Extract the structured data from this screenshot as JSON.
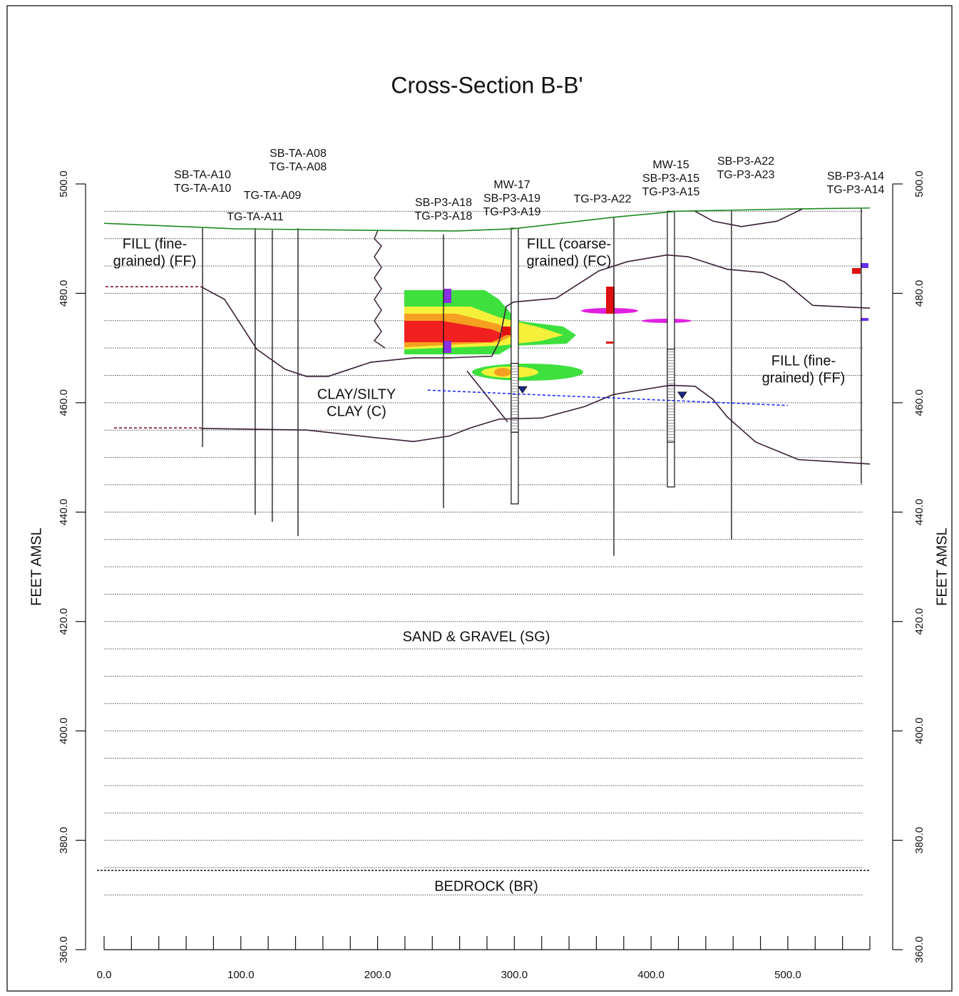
{
  "chart_data": {
    "type": "line",
    "title": "Cross-Section B-B'",
    "y_label": "FEET AMSL",
    "xlim": [
      0,
      560
    ],
    "ylim": [
      360,
      500
    ],
    "xticks": [
      {
        "value": 0,
        "label": "0.0"
      },
      {
        "value": 100,
        "label": "100.0"
      },
      {
        "value": 200,
        "label": "200.0"
      },
      {
        "value": 300,
        "label": "300.0"
      },
      {
        "value": 400,
        "label": "400.0"
      },
      {
        "value": 500,
        "label": "500.0"
      }
    ],
    "xminorticks": [
      20,
      40,
      60,
      80,
      120,
      140,
      160,
      180,
      220,
      240,
      260,
      280,
      320,
      340,
      360,
      380,
      420,
      440,
      460,
      480,
      520,
      540,
      560
    ],
    "yticks": [
      {
        "value": 500,
        "label": "500.0"
      },
      {
        "value": 480,
        "label": "480.0"
      },
      {
        "value": 460,
        "label": "460.0"
      },
      {
        "value": 440,
        "label": "440.0"
      },
      {
        "value": 420,
        "label": "420.0"
      },
      {
        "value": 400,
        "label": "400.0"
      },
      {
        "value": 380,
        "label": "380.0"
      },
      {
        "value": 360,
        "label": "360.0"
      }
    ],
    "grid_levels": [
      495,
      490,
      485,
      480,
      475,
      470,
      465,
      460,
      455,
      450,
      445,
      440,
      435,
      430,
      425,
      420,
      415,
      410,
      405,
      400,
      395,
      390,
      385,
      380,
      375,
      370
    ],
    "bedrock_contact": 374.5,
    "series": [
      {
        "color": "#1f8a1f",
        "dash": false,
        "x": [
          0,
          96,
          200,
          258,
          299,
          372,
          419,
          497,
          560
        ],
        "values": [
          492.8,
          491.8,
          491.5,
          491.4,
          491.8,
          493.9,
          495.0,
          495.4,
          495.6
        ]
      },
      {
        "color": "#7a1a2a",
        "dash": true,
        "x": [
          1.0,
          70.9
        ],
        "values": [
          481.2,
          481.2
        ]
      },
      {
        "color": "#3a1f35",
        "dash": false,
        "x": [
          70.9,
          88.1,
          111.6,
          132.4,
          148.1,
          163.7,
          195.0,
          226.3,
          252.3,
          283.6,
          288.8,
          294.1,
          299.3,
          330.6,
          361.8,
          382.7,
          411.4,
          427.0,
          455.7,
          481.8,
          497.4,
          518.2,
          560.0
        ],
        "values": [
          481.2,
          478.9,
          469.8,
          466.1,
          464.8,
          464.8,
          467.4,
          468.2,
          468.2,
          468.5,
          471.1,
          477.6,
          478.4,
          479.1,
          484.1,
          485.8,
          487.0,
          486.7,
          484.4,
          483.8,
          482.1,
          477.8,
          477.3
        ]
      },
      {
        "color": "#7a1a2a",
        "dash": true,
        "x": [
          7.3,
          70.9
        ],
        "values": [
          455.4,
          455.4
        ]
      },
      {
        "color": "#3a1f35",
        "dash": false,
        "x": [
          70.9,
          148.1,
          195.0,
          226.3,
          252.3,
          268.0,
          288.8,
          320.1,
          351.4,
          372.3,
          414.0,
          432.2,
          445.3,
          455.7,
          476.5,
          507.8,
          560.0
        ],
        "values": [
          455.3,
          455.0,
          453.7,
          452.9,
          453.9,
          455.4,
          457.0,
          457.2,
          459.3,
          461.5,
          463.2,
          463.0,
          460.6,
          457.4,
          452.8,
          449.6,
          448.8
        ]
      },
      {
        "color": "#3a1f35",
        "dash": false,
        "x": [
          265.4,
          295.1
        ],
        "values": [
          465.8,
          456.5
        ]
      },
      {
        "color": "#3a1f35",
        "dash": false,
        "x": [
          432.2,
          445.3,
          466.1,
          492.2,
          510.4
        ],
        "values": [
          495.0,
          493.2,
          492.2,
          493.2,
          495.4
        ]
      },
      {
        "color": "#1a2cff",
        "dash": true,
        "x": [
          236.7,
          500.0
        ],
        "values": [
          462.3,
          459.5
        ]
      }
    ],
    "water_levels": {
      "x": [
        306.0,
        422.8
      ],
      "values": [
        462.3,
        461.3
      ]
    },
    "borings": [
      {
        "labels": [
          "SB-TA-A10",
          "TG-TA-A10"
        ],
        "x": 72.0,
        "top": 491.9,
        "bottom": 451.9
      },
      {
        "labels": [
          "TG-TA-A11"
        ],
        "x": 110.5,
        "top": 491.9,
        "bottom": 439.5
      },
      {
        "labels": [
          "TG-TA-A09"
        ],
        "x": 123.0,
        "top": 491.6,
        "bottom": 438.2
      },
      {
        "labels": [
          "SB-TA-A08",
          "TG-TA-A08"
        ],
        "x": 141.8,
        "top": 491.9,
        "bottom": 435.6
      },
      {
        "labels": [
          "SB-P3-A18",
          "TG-P3-A18"
        ],
        "x": 248.2,
        "top": 490.8,
        "bottom": 440.7
      },
      {
        "labels": [
          "MW-17",
          "SB-P3-A19",
          "TG-P3-A19"
        ],
        "x": 300.3,
        "top": 491.9,
        "bottom": 441.5,
        "screen": [
          467.2,
          454.6
        ]
      },
      {
        "labels": [
          "TG-P3-A22"
        ],
        "x": 372.8,
        "top": 493.9,
        "bottom": 432.0
      },
      {
        "labels": [
          "MW-15",
          "SB-P3-A15",
          "TG-P3-A15"
        ],
        "x": 414.5,
        "top": 495.0,
        "bottom": 444.6,
        "screen": [
          469.8,
          452.8
        ]
      },
      {
        "labels": [
          "SB-P3-A22",
          "TG-P3-A23"
        ],
        "x": 458.8,
        "top": 495.2,
        "bottom": 435.0
      },
      {
        "labels": [
          "SB-P3-A14",
          "TG-P3-A14"
        ],
        "x": 553.7,
        "top": 495.6,
        "bottom": 445.2
      }
    ],
    "units": [
      {
        "lines": [
          "FILL (fine-",
          "grained) (FF)"
        ]
      },
      {
        "lines": [
          "FILL (coarse-",
          "grained) (FC)"
        ]
      },
      {
        "lines": [
          "FILL (fine-",
          "grained) (FF)"
        ]
      },
      {
        "lines": [
          "CLAY/SILTY",
          "CLAY (C)"
        ]
      },
      {
        "lines": [
          "SAND & GRAVEL (SG)"
        ]
      },
      {
        "lines": [
          "BEDROCK (BR)"
        ]
      }
    ]
  }
}
